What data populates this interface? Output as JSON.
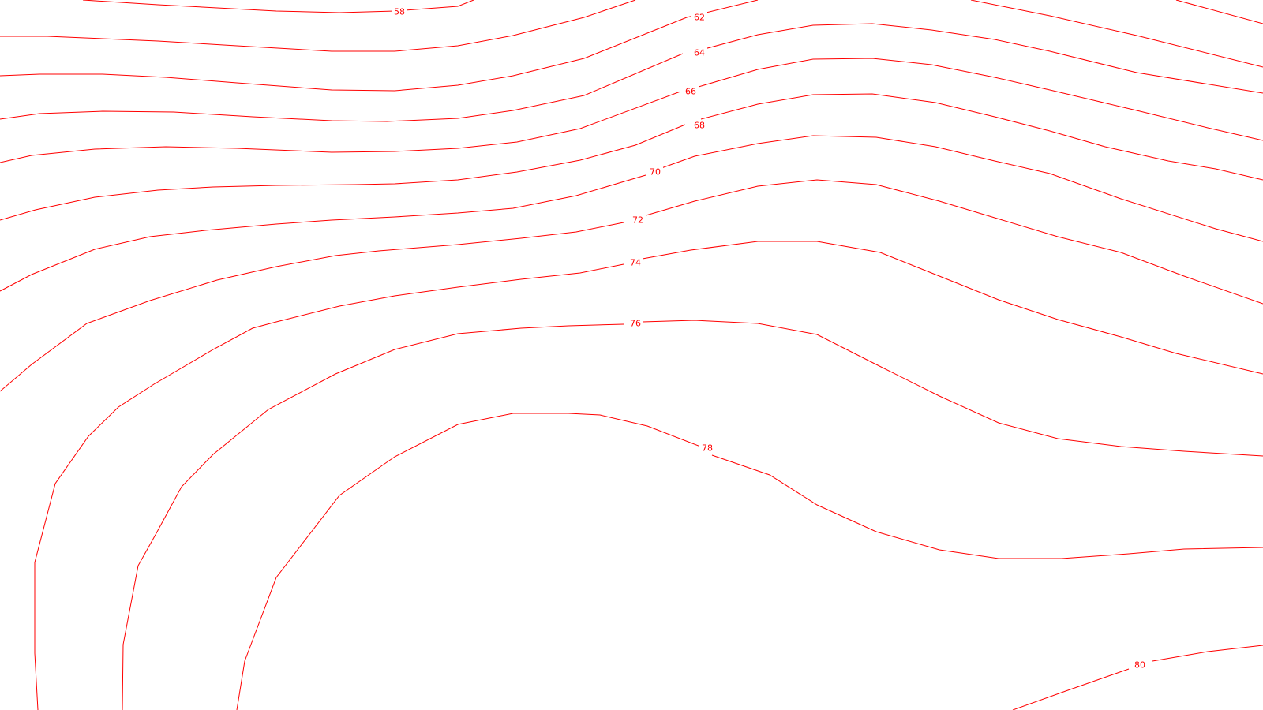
{
  "map": {
    "background_color": "#ffffff",
    "contour_color": "#ff0000",
    "contour_labels": [
      "58",
      "62",
      "64",
      "66",
      "68",
      "70",
      "72",
      "74",
      "76",
      "78",
      "80"
    ]
  }
}
